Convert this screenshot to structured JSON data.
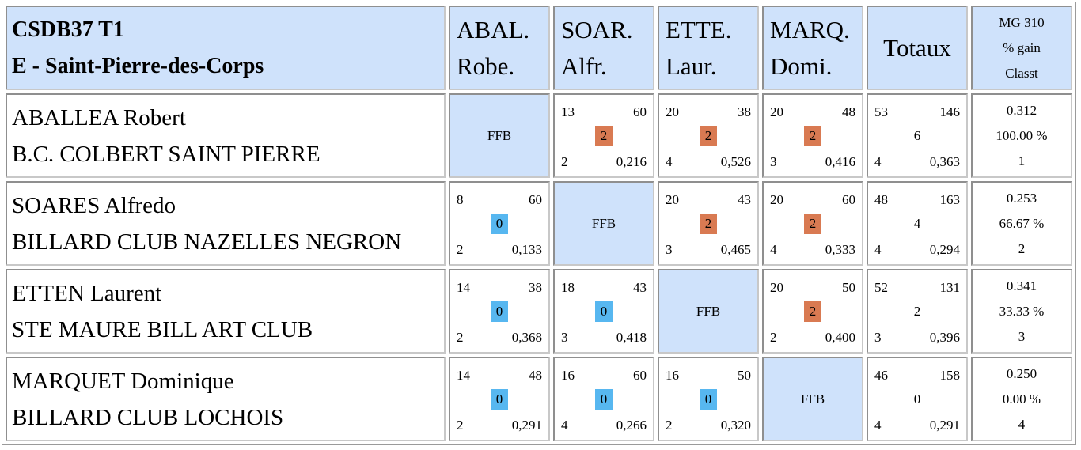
{
  "header": {
    "title_line1": "CSDB37 T1",
    "title_line2": "E - Saint-Pierre-des-Corps",
    "columns": [
      {
        "line1": "ABAL.",
        "line2": "Robe."
      },
      {
        "line1": "SOAR.",
        "line2": "Alfr."
      },
      {
        "line1": "ETTE.",
        "line2": "Laur."
      },
      {
        "line1": "MARQ.",
        "line2": "Domi."
      }
    ],
    "totals_label": "Totaux",
    "mg_line1": "MG 310",
    "mg_line2": "% gain",
    "mg_line3": "Classt"
  },
  "ffb_label": "FFB",
  "colors": {
    "header_bg": "#cfe2fb",
    "win_badge": "#d97a52",
    "loss_badge": "#57b7f0"
  },
  "rows": [
    {
      "name": "ABALLEA Robert",
      "club": "B.C. COLBERT SAINT PIERRE",
      "matches": [
        null,
        {
          "points": "13",
          "distance": "60",
          "result": "2",
          "reprises": "2",
          "average": "0,216",
          "win": true
        },
        {
          "points": "20",
          "distance": "38",
          "result": "2",
          "reprises": "4",
          "average": "0,526",
          "win": true
        },
        {
          "points": "20",
          "distance": "48",
          "result": "2",
          "reprises": "3",
          "average": "0,416",
          "win": true
        }
      ],
      "totals": {
        "points": "53",
        "reprises_total": "146",
        "match_points": "6",
        "best_series": "4",
        "average": "0,363"
      },
      "mg": {
        "value": "0.312",
        "gain": "100.00 %",
        "rank": "1"
      }
    },
    {
      "name": "SOARES Alfredo",
      "club": "BILLARD CLUB NAZELLES NEGRON",
      "matches": [
        {
          "points": "8",
          "distance": "60",
          "result": "0",
          "reprises": "2",
          "average": "0,133",
          "win": false
        },
        null,
        {
          "points": "20",
          "distance": "43",
          "result": "2",
          "reprises": "3",
          "average": "0,465",
          "win": true
        },
        {
          "points": "20",
          "distance": "60",
          "result": "2",
          "reprises": "4",
          "average": "0,333",
          "win": true
        }
      ],
      "totals": {
        "points": "48",
        "reprises_total": "163",
        "match_points": "4",
        "best_series": "4",
        "average": "0,294"
      },
      "mg": {
        "value": "0.253",
        "gain": "66.67 %",
        "rank": "2"
      }
    },
    {
      "name": "ETTEN Laurent",
      "club": "STE MAURE BILL ART CLUB",
      "matches": [
        {
          "points": "14",
          "distance": "38",
          "result": "0",
          "reprises": "2",
          "average": "0,368",
          "win": false
        },
        {
          "points": "18",
          "distance": "43",
          "result": "0",
          "reprises": "3",
          "average": "0,418",
          "win": false
        },
        null,
        {
          "points": "20",
          "distance": "50",
          "result": "2",
          "reprises": "2",
          "average": "0,400",
          "win": true
        }
      ],
      "totals": {
        "points": "52",
        "reprises_total": "131",
        "match_points": "2",
        "best_series": "3",
        "average": "0,396"
      },
      "mg": {
        "value": "0.341",
        "gain": "33.33 %",
        "rank": "3"
      }
    },
    {
      "name": "MARQUET Dominique",
      "club": "BILLARD CLUB LOCHOIS",
      "matches": [
        {
          "points": "14",
          "distance": "48",
          "result": "0",
          "reprises": "2",
          "average": "0,291",
          "win": false
        },
        {
          "points": "16",
          "distance": "60",
          "result": "0",
          "reprises": "4",
          "average": "0,266",
          "win": false
        },
        {
          "points": "16",
          "distance": "50",
          "result": "0",
          "reprises": "2",
          "average": "0,320",
          "win": false
        },
        null
      ],
      "totals": {
        "points": "46",
        "reprises_total": "158",
        "match_points": "0",
        "best_series": "4",
        "average": "0,291"
      },
      "mg": {
        "value": "0.250",
        "gain": "0.00 %",
        "rank": "4"
      }
    }
  ]
}
